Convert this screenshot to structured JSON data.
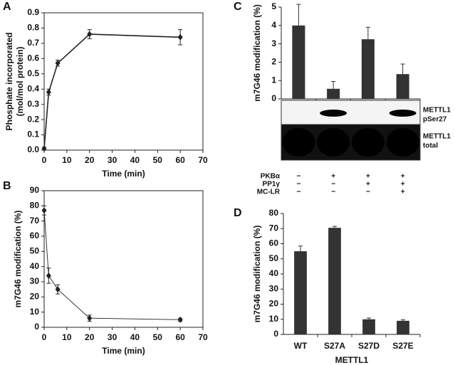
{
  "chart_data": [
    {
      "type": "line",
      "panel_label": "A",
      "xlabel": "Time (min)",
      "ylabel": [
        "Phosphate incorporated",
        "(mol/mol protein)"
      ],
      "x": [
        0,
        2,
        6,
        20,
        60
      ],
      "values": [
        0.01,
        0.38,
        0.57,
        0.76,
        0.74
      ],
      "errors": [
        0.01,
        0.02,
        0.02,
        0.03,
        0.05
      ],
      "color": "#222222",
      "xlim": [
        0,
        70
      ],
      "xticks": [
        0,
        10,
        20,
        30,
        40,
        50,
        60,
        70
      ],
      "ylim": [
        0,
        0.9
      ],
      "yticks": [
        {
          "value": 0,
          "label": "0.0"
        },
        0.1,
        0.2,
        0.3,
        0.4,
        0.5,
        0.6,
        0.7,
        0.8,
        0.9
      ]
    },
    {
      "type": "line",
      "panel_label": "B",
      "xlabel": "Time (min)",
      "ylabel": [
        "m7G46 modification (%)"
      ],
      "x": [
        0,
        2,
        6,
        20,
        60
      ],
      "values": [
        77,
        34,
        25,
        6,
        5
      ],
      "errors": [
        3,
        5,
        3,
        2,
        1
      ],
      "color": "#222222",
      "xlim": [
        0,
        70
      ],
      "xticks": [
        0,
        10,
        20,
        30,
        40,
        50,
        60,
        70
      ],
      "ylim": [
        0,
        90
      ],
      "yticks": [
        0,
        10,
        20,
        30,
        40,
        50,
        60,
        70,
        80,
        90
      ]
    },
    {
      "type": "bar",
      "panel_label": "C",
      "ylabel": [
        "m7G46 modification (%)"
      ],
      "categories": [
        null,
        null,
        null,
        null
      ],
      "values": [
        4.0,
        0.55,
        3.25,
        1.35
      ],
      "errors": [
        1.15,
        0.4,
        0.65,
        0.55
      ],
      "color": "#333333",
      "ylim": [
        0,
        5
      ],
      "yticks": [
        0,
        1,
        2,
        3,
        4,
        5
      ],
      "blot": {
        "rows": [
          [
            "METTL1",
            "pSer27"
          ],
          [
            "METTL1",
            "total"
          ]
        ],
        "treatments": [
          {
            "name": "PKBα",
            "signs": [
              "−",
              "+",
              "+",
              "+"
            ]
          },
          {
            "name": "PP1γ",
            "signs": [
              "−",
              "−",
              "+",
              "+"
            ]
          },
          {
            "name": "MC-LR",
            "signs": [
              "−",
              "−",
              "−",
              "+"
            ]
          }
        ]
      }
    },
    {
      "type": "bar",
      "panel_label": "D",
      "xlabel": "METTL1",
      "ylabel": [
        "m7G46 modification (%)"
      ],
      "categories": [
        "WT",
        "S27A",
        "S27D",
        "S27E"
      ],
      "values": [
        55,
        70.5,
        10,
        9
      ],
      "errors": [
        3.5,
        1,
        0.8,
        0.7
      ],
      "color": "#333333",
      "ylim": [
        0,
        80
      ],
      "yticks": [
        0,
        10,
        20,
        30,
        40,
        50,
        60,
        70,
        80
      ]
    }
  ]
}
